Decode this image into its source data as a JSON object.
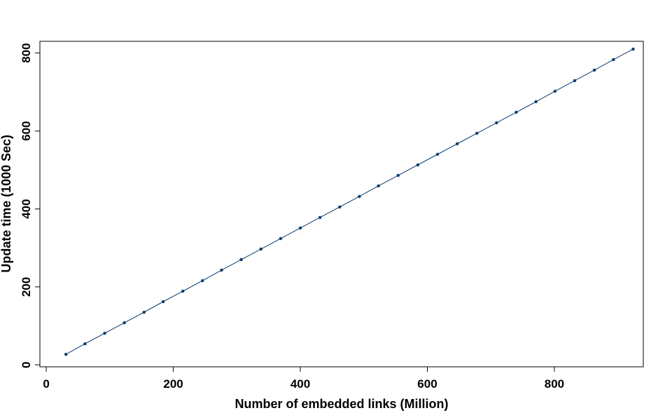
{
  "chart_data": {
    "type": "line",
    "title": "",
    "xlabel": "Number of embedded links (Million)",
    "ylabel": "Update time (1000 Sec)",
    "xlim": [
      -10,
      940
    ],
    "ylim": [
      -5,
      830
    ],
    "xticks": [
      0,
      200,
      400,
      600,
      800
    ],
    "yticks": [
      0,
      200,
      400,
      600,
      800
    ],
    "grid": false,
    "legend": "none",
    "series": [
      {
        "color": "#0b3b6b",
        "x": [
          31,
          61,
          92,
          123,
          154,
          184,
          215,
          246,
          276,
          307,
          338,
          369,
          400,
          431,
          462,
          493,
          523,
          554,
          585,
          616,
          647,
          678,
          709,
          740,
          771,
          801,
          832,
          863,
          893,
          924
        ],
        "y": [
          27,
          54,
          81,
          108,
          135,
          162,
          189,
          216,
          243,
          270,
          297,
          324,
          351,
          378,
          405,
          432,
          459,
          486,
          513,
          540,
          567,
          594,
          621,
          648,
          675,
          702,
          729,
          756,
          783,
          810
        ]
      }
    ]
  }
}
